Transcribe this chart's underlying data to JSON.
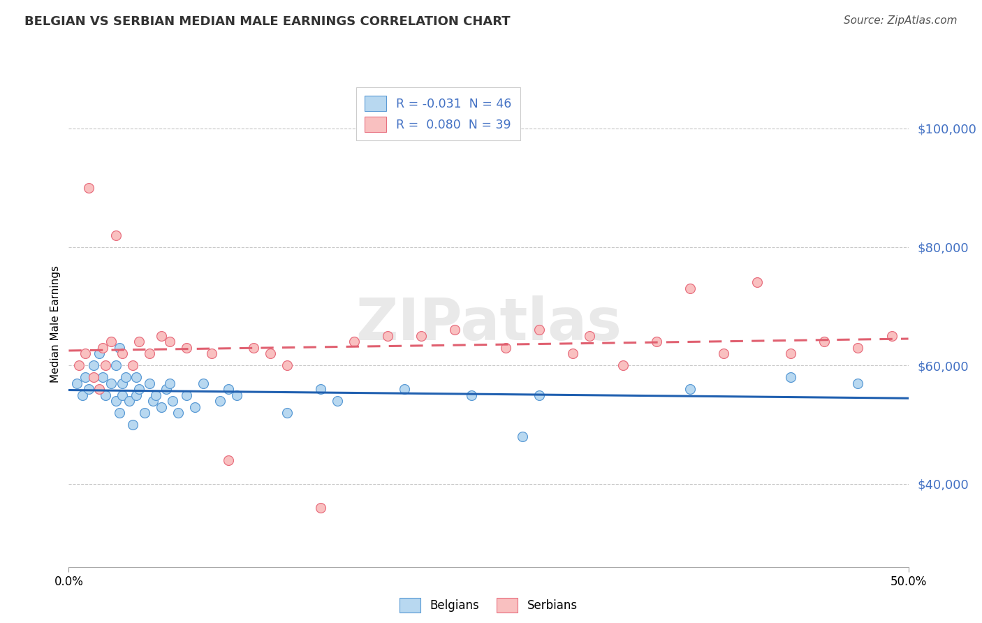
{
  "title": "BELGIAN VS SERBIAN MEDIAN MALE EARNINGS CORRELATION CHART",
  "source": "Source: ZipAtlas.com",
  "ylabel": "Median Male Earnings",
  "ytick_labels": [
    "$40,000",
    "$60,000",
    "$80,000",
    "$100,000"
  ],
  "ytick_values": [
    40000,
    60000,
    80000,
    100000
  ],
  "xlim": [
    0.0,
    0.5
  ],
  "ylim": [
    26000,
    108000
  ],
  "legend_label1": "Belgians",
  "legend_label2": "Serbians",
  "belgian_face": "#b8d8f0",
  "belgian_edge": "#5b9bd5",
  "serbian_face": "#f9c0c0",
  "serbian_edge": "#e87080",
  "belgian_line": "#2060b0",
  "serbian_line": "#e06070",
  "ytick_color": "#4472c4",
  "grid_color": "#c8c8c8",
  "belgians_x": [
    0.005,
    0.008,
    0.01,
    0.012,
    0.015,
    0.018,
    0.02,
    0.022,
    0.025,
    0.028,
    0.028,
    0.03,
    0.03,
    0.032,
    0.032,
    0.034,
    0.036,
    0.038,
    0.04,
    0.04,
    0.042,
    0.045,
    0.048,
    0.05,
    0.052,
    0.055,
    0.058,
    0.06,
    0.062,
    0.065,
    0.07,
    0.075,
    0.08,
    0.09,
    0.095,
    0.1,
    0.13,
    0.15,
    0.16,
    0.2,
    0.24,
    0.27,
    0.28,
    0.37,
    0.43,
    0.47
  ],
  "belgians_y": [
    57000,
    55000,
    58000,
    56000,
    60000,
    62000,
    58000,
    55000,
    57000,
    60000,
    54000,
    52000,
    63000,
    55000,
    57000,
    58000,
    54000,
    50000,
    58000,
    55000,
    56000,
    52000,
    57000,
    54000,
    55000,
    53000,
    56000,
    57000,
    54000,
    52000,
    55000,
    53000,
    57000,
    54000,
    56000,
    55000,
    52000,
    56000,
    54000,
    56000,
    55000,
    48000,
    55000,
    56000,
    58000,
    57000
  ],
  "serbians_x": [
    0.006,
    0.01,
    0.012,
    0.015,
    0.018,
    0.02,
    0.022,
    0.025,
    0.028,
    0.032,
    0.038,
    0.042,
    0.048,
    0.055,
    0.06,
    0.07,
    0.085,
    0.095,
    0.11,
    0.12,
    0.13,
    0.15,
    0.17,
    0.19,
    0.21,
    0.23,
    0.26,
    0.28,
    0.3,
    0.31,
    0.33,
    0.35,
    0.37,
    0.39,
    0.41,
    0.43,
    0.45,
    0.47,
    0.49
  ],
  "serbians_y": [
    60000,
    62000,
    90000,
    58000,
    56000,
    63000,
    60000,
    64000,
    82000,
    62000,
    60000,
    64000,
    62000,
    65000,
    64000,
    63000,
    62000,
    44000,
    63000,
    62000,
    60000,
    36000,
    64000,
    65000,
    65000,
    66000,
    63000,
    66000,
    62000,
    65000,
    60000,
    64000,
    73000,
    62000,
    74000,
    62000,
    64000,
    63000,
    65000
  ]
}
